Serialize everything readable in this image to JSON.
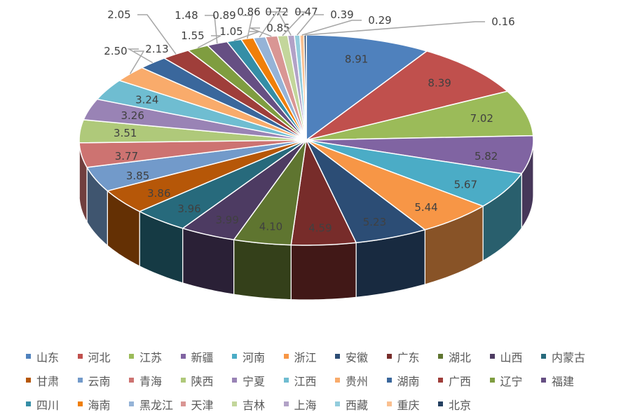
{
  "chart_data": {
    "type": "pie",
    "style": "3d",
    "start": "top, clockwise",
    "legend_position": "bottom",
    "series": [
      {
        "name": "山东",
        "value": 8.91,
        "color": "#4f81bd"
      },
      {
        "name": "河北",
        "value": 8.39,
        "color": "#c0504d"
      },
      {
        "name": "江苏",
        "value": 7.02,
        "color": "#9bbb59"
      },
      {
        "name": "新疆",
        "value": 5.82,
        "color": "#8064a2"
      },
      {
        "name": "河南",
        "value": 5.67,
        "color": "#4bacc6"
      },
      {
        "name": "浙江",
        "value": 5.44,
        "color": "#f79646"
      },
      {
        "name": "安徽",
        "value": 5.23,
        "color": "#2c4d75"
      },
      {
        "name": "广东",
        "value": 4.59,
        "color": "#772c2a"
      },
      {
        "name": "湖北",
        "value": 4.1,
        "color": "#5f7530"
      },
      {
        "name": "山西",
        "value": 3.99,
        "color": "#4d3b62"
      },
      {
        "name": "内蒙古",
        "value": 3.96,
        "color": "#276a7c"
      },
      {
        "name": "甘肃",
        "value": 3.86,
        "color": "#b65708"
      },
      {
        "name": "云南",
        "value": 3.85,
        "color": "#729aca"
      },
      {
        "name": "青海",
        "value": 3.77,
        "color": "#cd7371"
      },
      {
        "name": "陕西",
        "value": 3.51,
        "color": "#afc97a"
      },
      {
        "name": "宁夏",
        "value": 3.26,
        "color": "#9983b5"
      },
      {
        "name": "江西",
        "value": 3.24,
        "color": "#6fbdd1"
      },
      {
        "name": "贵州",
        "value": 2.5,
        "color": "#f9ab6b"
      },
      {
        "name": "湖南",
        "value": 2.13,
        "color": "#3a679c"
      },
      {
        "name": "广西",
        "value": 2.05,
        "color": "#9f3e3a"
      },
      {
        "name": "辽宁",
        "value": 1.55,
        "color": "#7f9d40"
      },
      {
        "name": "福建",
        "value": 1.48,
        "color": "#664f83"
      },
      {
        "name": "四川",
        "value": 1.05,
        "color": "#358ea6"
      },
      {
        "name": "海南",
        "value": 0.89,
        "color": "#f07f09"
      },
      {
        "name": "黑龙江",
        "value": 0.86,
        "color": "#95b3d7"
      },
      {
        "name": "天津",
        "value": 0.85,
        "color": "#d99694"
      },
      {
        "name": "吉林",
        "value": 0.72,
        "color": "#c3d69b"
      },
      {
        "name": "上海",
        "value": 0.47,
        "color": "#b2a2c7"
      },
      {
        "name": "西藏",
        "value": 0.39,
        "color": "#93cddd"
      },
      {
        "name": "重庆",
        "value": 0.29,
        "color": "#fac090"
      },
      {
        "name": "北京",
        "value": 0.16,
        "color": "#254061"
      }
    ]
  }
}
